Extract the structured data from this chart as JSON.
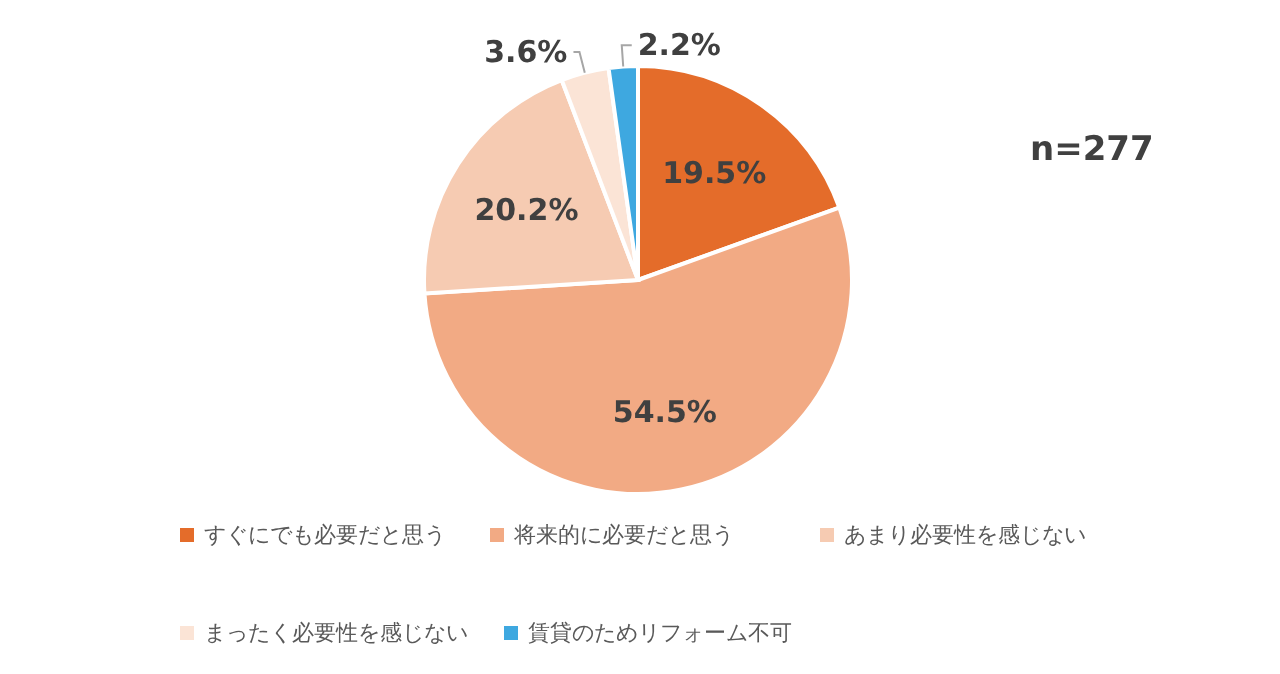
{
  "chart_data": {
    "type": "pie",
    "categories": [
      "すぐにでも必要だと思う",
      "将来的に必要だと思う",
      "あまり必要性を感じない",
      "まったく必要性を感じない",
      "賃貸のためリフォーム不可"
    ],
    "values": [
      19.5,
      54.5,
      20.2,
      3.6,
      2.2
    ],
    "value_labels": [
      "19.5%",
      "54.5%",
      "20.2%",
      "3.6%",
      "2.2%"
    ],
    "colors": [
      "#e46c2a",
      "#f2aa84",
      "#f6cbb2",
      "#fbe4d6",
      "#3ea8e0"
    ],
    "legend": "bottom",
    "annotations": [
      "n=277"
    ]
  }
}
